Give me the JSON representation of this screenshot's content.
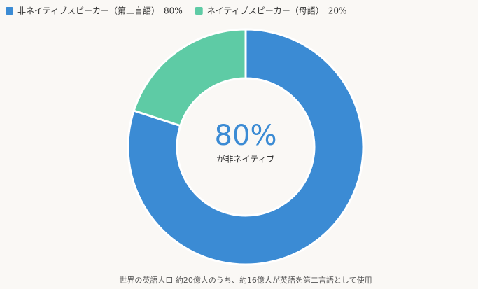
{
  "chart_data": {
    "type": "donut",
    "categories": [
      "非ネイティブスピーカー（第二言語）",
      "ネイティブスピーカー（母語）"
    ],
    "values": [
      80,
      20
    ],
    "value_labels": [
      "80%",
      "20%"
    ],
    "colors": [
      "#3b8bd4",
      "#5ecba5"
    ],
    "center_label": "80%",
    "center_sublabel": "が非ネイティブ",
    "footnote": "世界の英語人口 約20億人のうち、約16億人が英語を第二言語として使用",
    "legend": "top-left"
  }
}
